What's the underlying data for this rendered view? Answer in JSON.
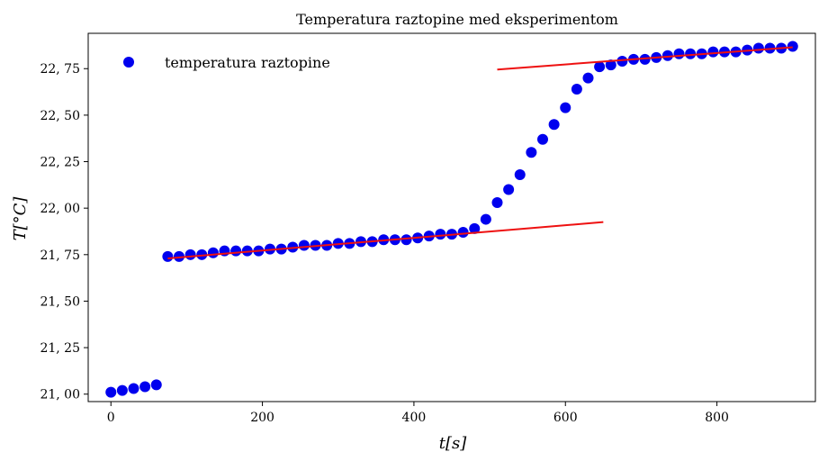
{
  "chart_data": {
    "type": "scatter",
    "title": "Temperatura raztopine med eksperimentom",
    "xlabel": "t[s]",
    "ylabel": "T[°C]",
    "xlim": [
      -30,
      930
    ],
    "ylim": [
      20.96,
      22.94
    ],
    "x_ticks": [
      0,
      200,
      400,
      600,
      800
    ],
    "y_ticks": [
      21.0,
      21.25,
      21.5,
      21.75,
      22.0,
      22.25,
      22.5,
      22.75
    ],
    "x_tick_labels": [
      "0",
      "200",
      "400",
      "600",
      "800"
    ],
    "y_tick_labels": [
      "21, 00",
      "21, 25",
      "21, 50",
      "21, 75",
      "22, 00",
      "22, 25",
      "22, 50",
      "22, 75"
    ],
    "grid": false,
    "legend_position": "top-left",
    "marker_color": "#0000ee",
    "fit_line_color": "#ee1111",
    "series": [
      {
        "name": "temperatura raztopine",
        "x": [
          0,
          15,
          30,
          45,
          60,
          75,
          90,
          105,
          120,
          135,
          150,
          165,
          180,
          195,
          210,
          225,
          240,
          255,
          270,
          285,
          300,
          315,
          330,
          345,
          360,
          375,
          390,
          405,
          420,
          435,
          450,
          465,
          480,
          495,
          510,
          525,
          540,
          555,
          570,
          585,
          600,
          615,
          630,
          645,
          660,
          675,
          690,
          705,
          720,
          735,
          750,
          765,
          780,
          795,
          810,
          825,
          840,
          855,
          870,
          885,
          900
        ],
        "y": [
          21.01,
          21.02,
          21.03,
          21.04,
          21.05,
          21.74,
          21.74,
          21.75,
          21.75,
          21.76,
          21.77,
          21.77,
          21.77,
          21.77,
          21.78,
          21.78,
          21.79,
          21.8,
          21.8,
          21.8,
          21.81,
          21.81,
          21.82,
          21.82,
          21.83,
          21.83,
          21.83,
          21.84,
          21.85,
          21.86,
          21.86,
          21.87,
          21.89,
          21.94,
          22.03,
          22.1,
          22.18,
          22.3,
          22.37,
          22.45,
          22.54,
          22.64,
          22.7,
          22.76,
          22.77,
          22.79,
          22.8,
          22.8,
          22.81,
          22.82,
          22.83,
          22.83,
          22.83,
          22.84,
          22.84,
          22.84,
          22.85,
          22.86,
          22.86,
          22.86,
          22.87
        ]
      }
    ],
    "fit_lines": [
      {
        "x": [
          75,
          650
        ],
        "y": [
          21.73,
          21.925
        ]
      },
      {
        "x": [
          510,
          900
        ],
        "y": [
          22.745,
          22.865
        ]
      }
    ]
  }
}
